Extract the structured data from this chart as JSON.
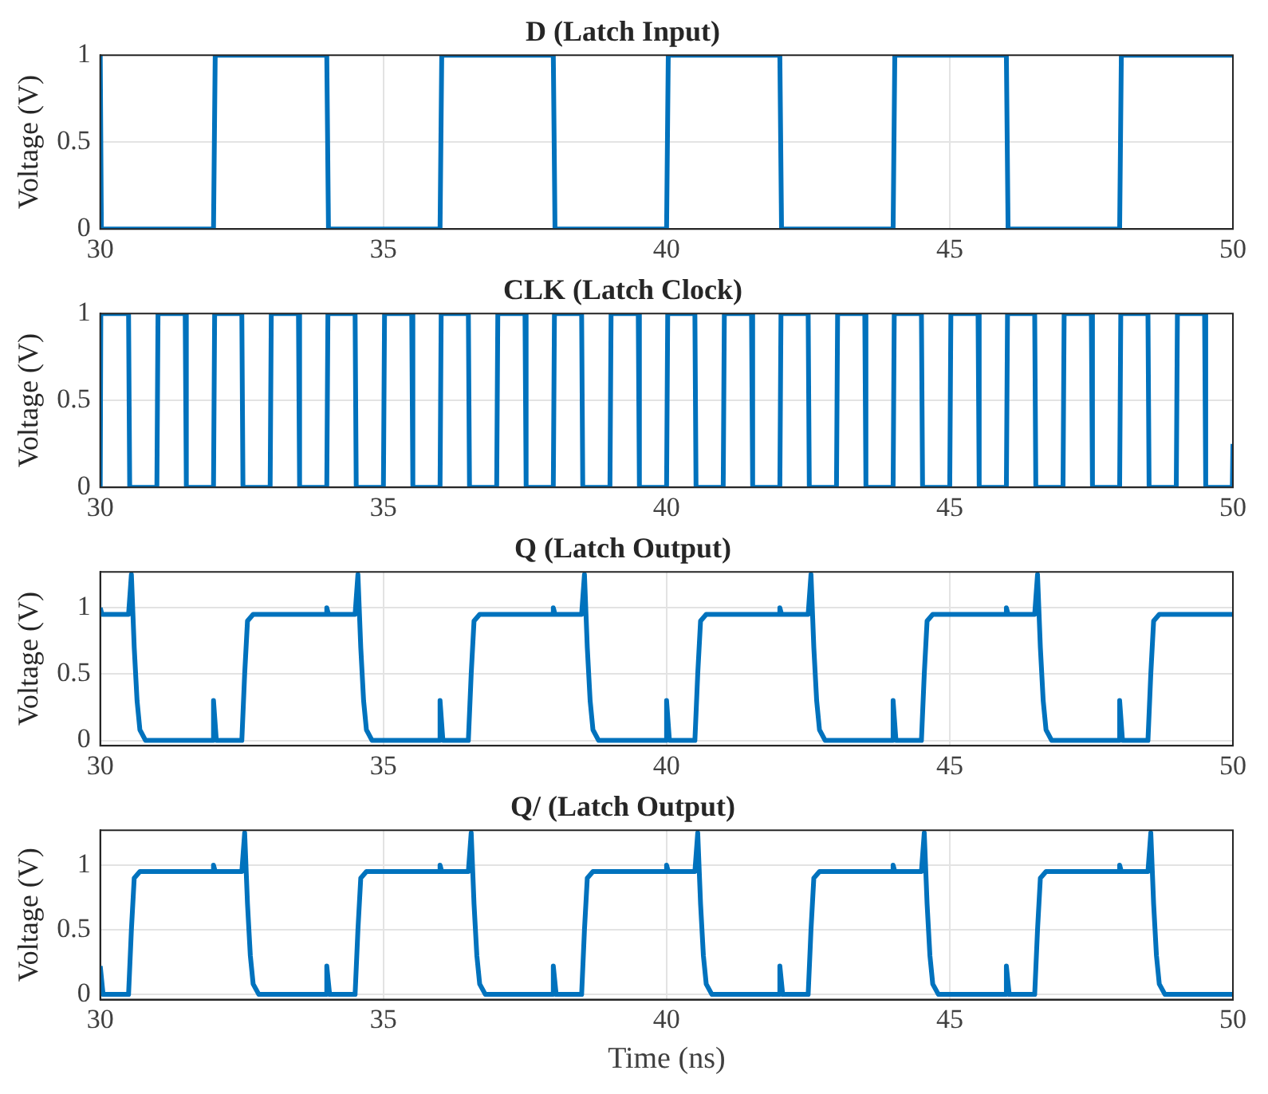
{
  "chart_data": [
    {
      "type": "line",
      "title": "D (Latch Input)",
      "ylabel": "Voltage (V)",
      "xlim": [
        30,
        50
      ],
      "xticks": [
        30,
        35,
        40,
        45,
        50
      ],
      "ylim": [
        0,
        1
      ],
      "yticks": [
        0,
        0.5,
        1
      ],
      "grid": true,
      "marker": "none",
      "series": [
        {
          "color": "#0072bd",
          "x": [
            30,
            30.02,
            32,
            32.03,
            34,
            34.03,
            36,
            36.03,
            38,
            38.03,
            40,
            40.03,
            42,
            42.03,
            44,
            44.03,
            46,
            46.03,
            48,
            48.03,
            50
          ],
          "values": [
            1,
            0,
            0,
            1,
            1,
            0,
            0,
            1,
            1,
            0,
            0,
            1,
            1,
            0,
            0,
            1,
            1,
            0,
            0,
            1,
            1
          ]
        }
      ]
    },
    {
      "type": "line",
      "title": "CLK (Latch Clock)",
      "ylabel": "Voltage (V)",
      "xlim": [
        30,
        50
      ],
      "xticks": [
        30,
        35,
        40,
        45,
        50
      ],
      "ylim": [
        0,
        1
      ],
      "yticks": [
        0,
        0.5,
        1
      ],
      "grid": true,
      "marker": "none",
      "series": [
        {
          "color": "#0072bd",
          "x": [
            30,
            30.01,
            30.5,
            30.52,
            31,
            31.02,
            31.5,
            31.52,
            32,
            32.02,
            32.5,
            32.52,
            33,
            33.02,
            33.5,
            33.52,
            34,
            34.02,
            34.5,
            34.52,
            35,
            35.02,
            35.5,
            35.52,
            36,
            36.02,
            36.5,
            36.52,
            37,
            37.02,
            37.5,
            37.52,
            38,
            38.02,
            38.5,
            38.52,
            39,
            39.02,
            39.5,
            39.52,
            40,
            40.02,
            40.5,
            40.52,
            41,
            41.02,
            41.5,
            41.52,
            42,
            42.02,
            42.5,
            42.52,
            43,
            43.02,
            43.5,
            43.52,
            44,
            44.02,
            44.5,
            44.52,
            45,
            45.02,
            45.5,
            45.52,
            46,
            46.02,
            46.5,
            46.52,
            47,
            47.02,
            47.5,
            47.52,
            48,
            48.02,
            48.5,
            48.52,
            49,
            49.02,
            49.5,
            49.52,
            49.99,
            50
          ],
          "values": [
            0,
            1,
            1,
            0,
            0,
            1,
            1,
            0,
            0,
            1,
            1,
            0,
            0,
            1,
            1,
            0,
            0,
            1,
            1,
            0,
            0,
            1,
            1,
            0,
            0,
            1,
            1,
            0,
            0,
            1,
            1,
            0,
            0,
            1,
            1,
            0,
            0,
            1,
            1,
            0,
            0,
            1,
            1,
            0,
            0,
            1,
            1,
            0,
            0,
            1,
            1,
            0,
            0,
            1,
            1,
            0,
            0,
            1,
            1,
            0,
            0,
            1,
            1,
            0,
            0,
            1,
            1,
            0,
            0,
            1,
            1,
            0,
            0,
            1,
            1,
            0,
            0,
            1,
            1,
            0,
            0,
            0.25
          ]
        }
      ]
    },
    {
      "type": "line",
      "title": "Q (Latch Output)",
      "ylabel": "Voltage (V)",
      "xlim": [
        30,
        50
      ],
      "xticks": [
        30,
        35,
        40,
        45,
        50
      ],
      "ylim": [
        -0.04,
        1.27
      ],
      "yticks": [
        0,
        0.5,
        1
      ],
      "grid": true,
      "marker": "none",
      "series": [
        {
          "color": "#0072bd",
          "x": [
            30,
            30.03,
            30.5,
            30.55,
            30.6,
            30.65,
            30.7,
            30.8,
            31.98,
            32,
            32.05,
            32.5,
            32.55,
            32.6,
            32.7,
            33.98,
            34,
            34.03,
            34.5,
            34.55,
            34.6,
            34.65,
            34.7,
            34.8,
            35.98,
            36,
            36.05,
            36.5,
            36.55,
            36.6,
            36.7,
            37.98,
            38,
            38.03,
            38.5,
            38.55,
            38.6,
            38.65,
            38.7,
            38.8,
            39.98,
            40,
            40.05,
            40.5,
            40.55,
            40.6,
            40.7,
            41.98,
            42,
            42.03,
            42.5,
            42.55,
            42.6,
            42.65,
            42.7,
            42.8,
            43.98,
            44,
            44.05,
            44.5,
            44.55,
            44.6,
            44.7,
            45.98,
            46,
            46.03,
            46.5,
            46.55,
            46.6,
            46.65,
            46.7,
            46.8,
            47.98,
            48,
            48.05,
            48.5,
            48.55,
            48.6,
            48.7,
            50
          ],
          "values": [
            1,
            0.95,
            0.95,
            1.25,
            0.7,
            0.3,
            0.08,
            0,
            0,
            0.3,
            0,
            0,
            0.5,
            0.9,
            0.95,
            0.95,
            1,
            0.95,
            0.95,
            1.25,
            0.7,
            0.3,
            0.08,
            0,
            0,
            0.3,
            0,
            0,
            0.5,
            0.9,
            0.95,
            0.95,
            1,
            0.95,
            0.95,
            1.25,
            0.7,
            0.3,
            0.08,
            0,
            0,
            0.3,
            0,
            0,
            0.5,
            0.9,
            0.95,
            0.95,
            1,
            0.95,
            0.95,
            1.25,
            0.7,
            0.3,
            0.08,
            0,
            0,
            0.3,
            0,
            0,
            0.5,
            0.9,
            0.95,
            0.95,
            1,
            0.95,
            0.95,
            1.25,
            0.7,
            0.3,
            0.08,
            0,
            0,
            0.3,
            0,
            0,
            0.5,
            0.9,
            0.95,
            0.95
          ]
        }
      ]
    },
    {
      "type": "line",
      "title": "Q/ (Latch Output)",
      "ylabel": "Voltage (V)",
      "xlabel": "Time (ns)",
      "xlim": [
        30,
        50
      ],
      "xticks": [
        30,
        35,
        40,
        45,
        50
      ],
      "ylim": [
        -0.04,
        1.27
      ],
      "yticks": [
        0,
        0.5,
        1
      ],
      "grid": true,
      "marker": "none",
      "series": [
        {
          "color": "#0072bd",
          "x": [
            30,
            30.05,
            30.5,
            30.55,
            30.6,
            30.7,
            31.98,
            32,
            32.03,
            32.5,
            32.55,
            32.6,
            32.65,
            32.7,
            32.8,
            33.98,
            34,
            34.05,
            34.5,
            34.55,
            34.6,
            34.7,
            35.98,
            36,
            36.03,
            36.5,
            36.55,
            36.6,
            36.65,
            36.7,
            36.8,
            37.98,
            38,
            38.05,
            38.5,
            38.55,
            38.6,
            38.7,
            39.98,
            40,
            40.03,
            40.5,
            40.55,
            40.6,
            40.65,
            40.7,
            40.8,
            41.98,
            42,
            42.05,
            42.5,
            42.55,
            42.6,
            42.7,
            43.98,
            44,
            44.03,
            44.5,
            44.55,
            44.6,
            44.65,
            44.7,
            44.8,
            45.98,
            46,
            46.05,
            46.5,
            46.55,
            46.6,
            46.7,
            47.98,
            48,
            48.03,
            48.5,
            48.55,
            48.6,
            48.65,
            48.7,
            48.8,
            50
          ],
          "values": [
            0.22,
            0,
            0,
            0.5,
            0.9,
            0.95,
            0.95,
            1,
            0.95,
            0.95,
            1.25,
            0.7,
            0.3,
            0.08,
            0,
            0,
            0.22,
            0,
            0,
            0.5,
            0.9,
            0.95,
            0.95,
            1,
            0.95,
            0.95,
            1.25,
            0.7,
            0.3,
            0.08,
            0,
            0,
            0.22,
            0,
            0,
            0.5,
            0.9,
            0.95,
            0.95,
            1,
            0.95,
            0.95,
            1.25,
            0.7,
            0.3,
            0.08,
            0,
            0,
            0.22,
            0,
            0,
            0.5,
            0.9,
            0.95,
            0.95,
            1,
            0.95,
            0.95,
            1.25,
            0.7,
            0.3,
            0.08,
            0,
            0,
            0.22,
            0,
            0,
            0.5,
            0.9,
            0.95,
            0.95,
            1,
            0.95,
            0.95,
            1.25,
            0.7,
            0.3,
            0.08,
            0,
            0
          ]
        }
      ]
    }
  ]
}
